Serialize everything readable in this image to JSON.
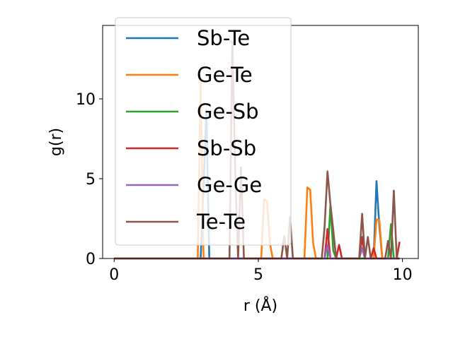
{
  "chart_data": {
    "type": "line",
    "xlabel": "r (Å)",
    "ylabel": "g(r)",
    "xlim": [
      -0.4,
      10.55
    ],
    "ylim": [
      0,
      14.6
    ],
    "xticks": [
      0,
      5,
      10
    ],
    "yticks": [
      0,
      5,
      10
    ],
    "x_tick_labels": [
      "0",
      "5",
      "10"
    ],
    "y_tick_labels": [
      "0",
      "5",
      "10"
    ],
    "grid": false,
    "legend_position": "top-left",
    "series": [
      {
        "name": "Sb-Te",
        "color": "#1f77b4",
        "x": [
          0,
          2.8,
          2.9,
          3.0,
          3.1,
          3.2,
          3.3,
          3.4,
          9.0,
          9.1,
          9.2,
          9.3,
          9.9
        ],
        "y": [
          0,
          0,
          0,
          0,
          4.5,
          9.3,
          0,
          0,
          0,
          4.85,
          2.0,
          0,
          0
        ]
      },
      {
        "name": "Ge-Te",
        "color": "#ff7f0e",
        "x": [
          0,
          2.8,
          2.9,
          3.0,
          3.1,
          3.2,
          5.1,
          5.2,
          5.3,
          5.4,
          5.5,
          6.6,
          6.7,
          6.8,
          6.9,
          7.0,
          9.0,
          9.1,
          9.2,
          9.3,
          9.9
        ],
        "y": [
          0,
          0,
          0,
          11.0,
          0,
          0,
          0,
          3.7,
          3.6,
          1.0,
          0,
          0,
          4.45,
          4.3,
          1.0,
          0,
          0,
          2.45,
          2.4,
          0,
          0
        ]
      },
      {
        "name": "Ge-Sb",
        "color": "#2ca02c",
        "x": [
          0,
          7.4,
          7.5,
          7.6,
          7.7,
          9.5,
          9.6,
          9.7,
          9.9
        ],
        "y": [
          0,
          0,
          3.3,
          0.5,
          0,
          0,
          2.15,
          0,
          0
        ]
      },
      {
        "name": "Sb-Sb",
        "color": "#d62728",
        "x": [
          0,
          7.3,
          7.4,
          7.5,
          7.7,
          7.8,
          7.9,
          8.5,
          8.6,
          8.7,
          8.9,
          9.0,
          9.1,
          9.8,
          9.9
        ],
        "y": [
          0,
          0,
          1.85,
          0,
          0,
          0.85,
          0,
          0,
          1.35,
          0,
          0,
          0.65,
          0,
          0,
          1.05
        ]
      },
      {
        "name": "Ge-Ge",
        "color": "#9467bd",
        "x": [
          0,
          7.3,
          7.4,
          7.5,
          8.5,
          8.6,
          8.7,
          9.9
        ],
        "y": [
          0,
          0,
          0.85,
          0,
          0,
          0.65,
          0,
          0
        ]
      },
      {
        "name": "Te-Te",
        "color": "#8c564b",
        "x": [
          0,
          4.0,
          4.1,
          4.2,
          4.3,
          4.4,
          4.5,
          5.8,
          5.9,
          6.0,
          6.1,
          6.2,
          7.2,
          7.3,
          7.4,
          7.5,
          7.6,
          7.7,
          8.5,
          8.6,
          8.7,
          8.8,
          8.9,
          9.4,
          9.5,
          9.6,
          9.7,
          9.8,
          9.9
        ],
        "y": [
          0,
          0,
          13.6,
          5.3,
          0,
          5.7,
          0,
          0,
          1.4,
          0,
          2.6,
          0,
          0,
          2.0,
          5.45,
          3.4,
          1.8,
          0,
          0,
          2.8,
          0,
          1.35,
          0,
          0,
          1.1,
          0,
          4.25,
          0,
          0
        ]
      }
    ]
  }
}
